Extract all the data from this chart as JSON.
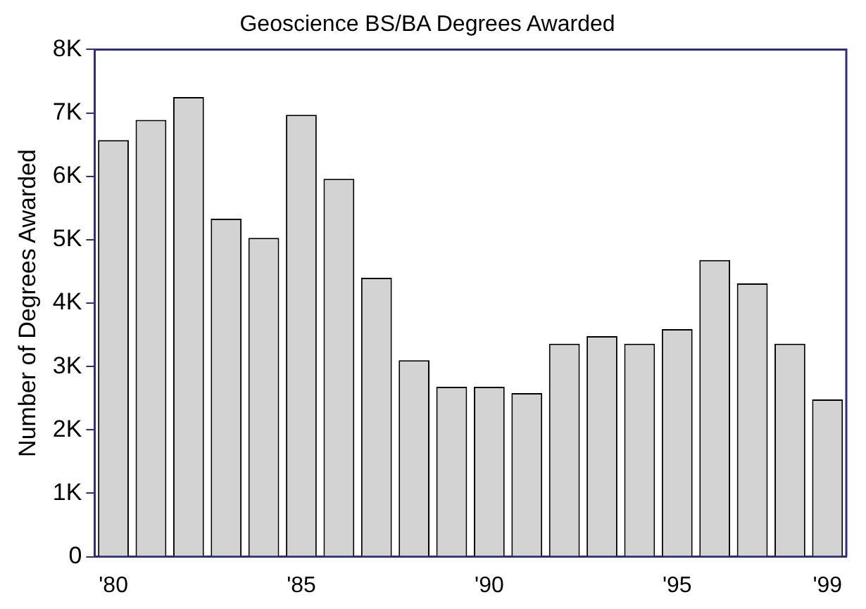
{
  "chart_data": {
    "type": "bar",
    "title": "Geoscience BS/BA Degrees Awarded",
    "ylabel": "Number of Degrees Awarded",
    "categories": [
      "'80",
      null,
      null,
      null,
      null,
      "'85",
      null,
      null,
      null,
      null,
      "'90",
      null,
      null,
      null,
      null,
      "'95",
      null,
      null,
      null,
      "'99"
    ],
    "values": [
      6570,
      6890,
      7250,
      5330,
      5030,
      6970,
      5960,
      4400,
      3100,
      2680,
      2680,
      2580,
      3360,
      3480,
      3360,
      3590,
      4680,
      4310,
      3360,
      2480
    ],
    "color": "#d3d3d3",
    "ylim": [
      0,
      8000
    ],
    "yticks": [
      0,
      {
        "value": 1000,
        "label": "1K"
      },
      {
        "value": 2000,
        "label": "2K"
      },
      {
        "value": 3000,
        "label": "3K"
      },
      {
        "value": 4000,
        "label": "4K"
      },
      {
        "value": 5000,
        "label": "5K"
      },
      {
        "value": 6000,
        "label": "6K"
      },
      {
        "value": 7000,
        "label": "7K"
      },
      {
        "value": 8000,
        "label": "8K"
      }
    ],
    "grid": false,
    "legend": false
  }
}
